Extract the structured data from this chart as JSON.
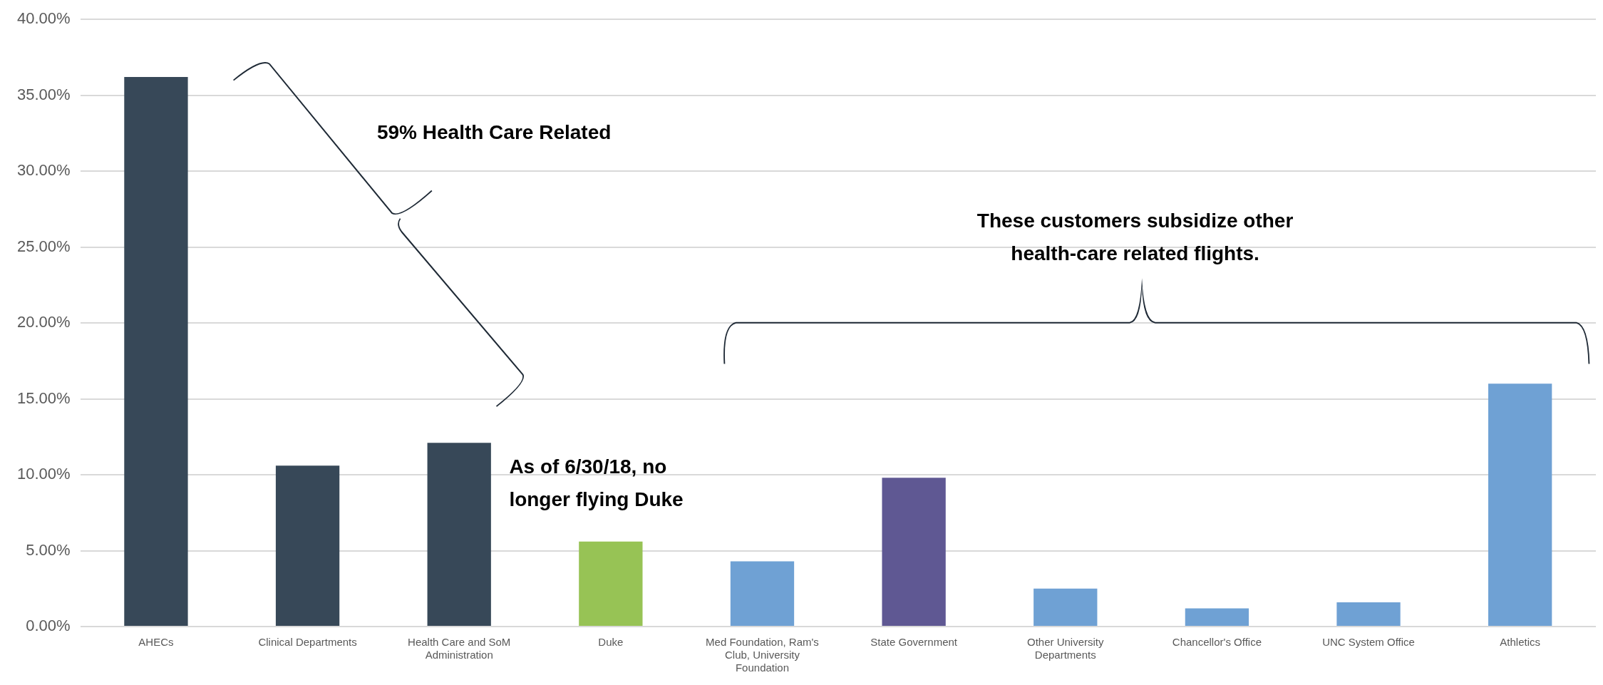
{
  "chart_data": {
    "type": "bar",
    "categories": [
      "AHECs",
      "Clinical Departments",
      "Health Care and SoM Administration",
      "Duke",
      "Med Foundation, Ram's Club, University Foundation",
      "State Government",
      "Other University Departments",
      "Chancellor's Office",
      "UNC System Office",
      "Athletics"
    ],
    "values": [
      36.2,
      10.6,
      12.1,
      5.6,
      4.3,
      9.8,
      2.5,
      1.2,
      1.6,
      16.0
    ],
    "colors": [
      "#374858",
      "#374858",
      "#374858",
      "#97c355",
      "#6fa1d4",
      "#5f5893",
      "#6fa1d4",
      "#6fa1d4",
      "#6fa1d4",
      "#6fa1d4"
    ],
    "ylim": [
      0,
      40
    ],
    "yticks": [
      {
        "value": 0,
        "label": "0.00%"
      },
      {
        "value": 5,
        "label": "5.00%"
      },
      {
        "value": 10,
        "label": "10.00%"
      },
      {
        "value": 15,
        "label": "15.00%"
      },
      {
        "value": 20,
        "label": "20.00%"
      },
      {
        "value": 25,
        "label": "25.00%"
      },
      {
        "value": 30,
        "label": "30.00%"
      },
      {
        "value": 35,
        "label": "35.00%"
      },
      {
        "value": 40,
        "label": "40.00%"
      }
    ],
    "grid": "y",
    "legend": false,
    "annotations": [
      "59% Health Care Related",
      "These customers subsidize other health-care related flights.",
      "As of 6/30/18, no longer flying Duke"
    ]
  }
}
